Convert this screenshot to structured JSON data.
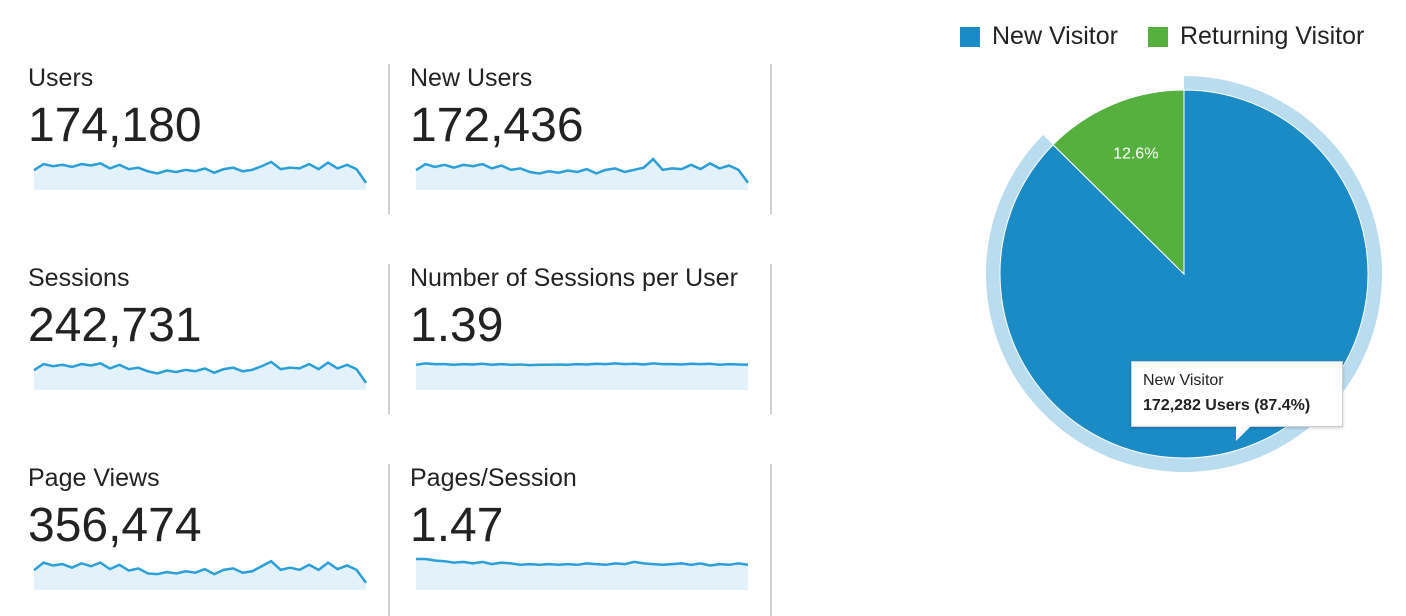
{
  "metrics": [
    {
      "label": "Users",
      "value": "174,180",
      "spark": [
        0.55,
        0.72,
        0.66,
        0.7,
        0.64,
        0.72,
        0.68,
        0.74,
        0.6,
        0.7,
        0.58,
        0.62,
        0.52,
        0.46,
        0.54,
        0.5,
        0.56,
        0.52,
        0.6,
        0.48,
        0.58,
        0.62,
        0.52,
        0.56,
        0.66,
        0.78,
        0.58,
        0.62,
        0.6,
        0.72,
        0.58,
        0.76,
        0.6,
        0.7,
        0.58,
        0.2
      ]
    },
    {
      "label": "New Users",
      "value": "172,436",
      "spark": [
        0.55,
        0.72,
        0.64,
        0.7,
        0.62,
        0.7,
        0.66,
        0.72,
        0.6,
        0.68,
        0.56,
        0.6,
        0.5,
        0.46,
        0.52,
        0.48,
        0.54,
        0.5,
        0.58,
        0.46,
        0.56,
        0.6,
        0.5,
        0.56,
        0.62,
        0.86,
        0.56,
        0.6,
        0.58,
        0.7,
        0.58,
        0.74,
        0.6,
        0.68,
        0.56,
        0.2
      ]
    },
    {
      "label": "Sessions",
      "value": "242,731",
      "spark": [
        0.55,
        0.72,
        0.66,
        0.7,
        0.64,
        0.72,
        0.68,
        0.74,
        0.6,
        0.7,
        0.58,
        0.62,
        0.52,
        0.46,
        0.54,
        0.5,
        0.56,
        0.52,
        0.6,
        0.48,
        0.58,
        0.62,
        0.52,
        0.56,
        0.66,
        0.78,
        0.58,
        0.62,
        0.6,
        0.72,
        0.58,
        0.76,
        0.6,
        0.7,
        0.58,
        0.2
      ]
    },
    {
      "label": "Number of Sessions per User",
      "value": "1.39",
      "spark": [
        0.7,
        0.74,
        0.72,
        0.72,
        0.7,
        0.72,
        0.71,
        0.73,
        0.7,
        0.72,
        0.7,
        0.71,
        0.69,
        0.7,
        0.7,
        0.71,
        0.7,
        0.72,
        0.71,
        0.73,
        0.72,
        0.74,
        0.72,
        0.73,
        0.71,
        0.74,
        0.72,
        0.72,
        0.71,
        0.73,
        0.72,
        0.73,
        0.7,
        0.72,
        0.71,
        0.7
      ]
    },
    {
      "label": "Page Views",
      "value": "356,474",
      "spark": [
        0.55,
        0.76,
        0.68,
        0.72,
        0.62,
        0.74,
        0.66,
        0.76,
        0.58,
        0.7,
        0.54,
        0.6,
        0.46,
        0.44,
        0.5,
        0.46,
        0.52,
        0.48,
        0.58,
        0.44,
        0.56,
        0.6,
        0.48,
        0.52,
        0.66,
        0.8,
        0.56,
        0.62,
        0.56,
        0.7,
        0.56,
        0.76,
        0.58,
        0.68,
        0.56,
        0.2
      ]
    },
    {
      "label": "Pages/Session",
      "value": "1.47",
      "spark": [
        0.86,
        0.86,
        0.82,
        0.8,
        0.76,
        0.78,
        0.74,
        0.78,
        0.72,
        0.76,
        0.74,
        0.7,
        0.72,
        0.7,
        0.72,
        0.7,
        0.72,
        0.7,
        0.74,
        0.72,
        0.7,
        0.74,
        0.72,
        0.78,
        0.74,
        0.72,
        0.7,
        0.72,
        0.74,
        0.7,
        0.74,
        0.68,
        0.72,
        0.7,
        0.74,
        0.7
      ]
    }
  ],
  "legend": [
    {
      "label": "New Visitor",
      "color": "#1a8bc4"
    },
    {
      "label": "Returning Visitor",
      "color": "#55b03e"
    }
  ],
  "pie": {
    "slices": [
      {
        "name": "New Visitor",
        "percent": 87.4,
        "color": "#1a8bc4"
      },
      {
        "name": "Returning Visitor",
        "percent": 12.6,
        "color": "#55b03e",
        "label": "12.6%"
      }
    ]
  },
  "tooltip": {
    "title": "New Visitor",
    "detail": "172,282 Users (87.4%)"
  },
  "colors": {
    "spark_line": "#2a9fd8",
    "spark_fill": "#e3f1fa",
    "highlight_ring": "#b9dcee"
  }
}
